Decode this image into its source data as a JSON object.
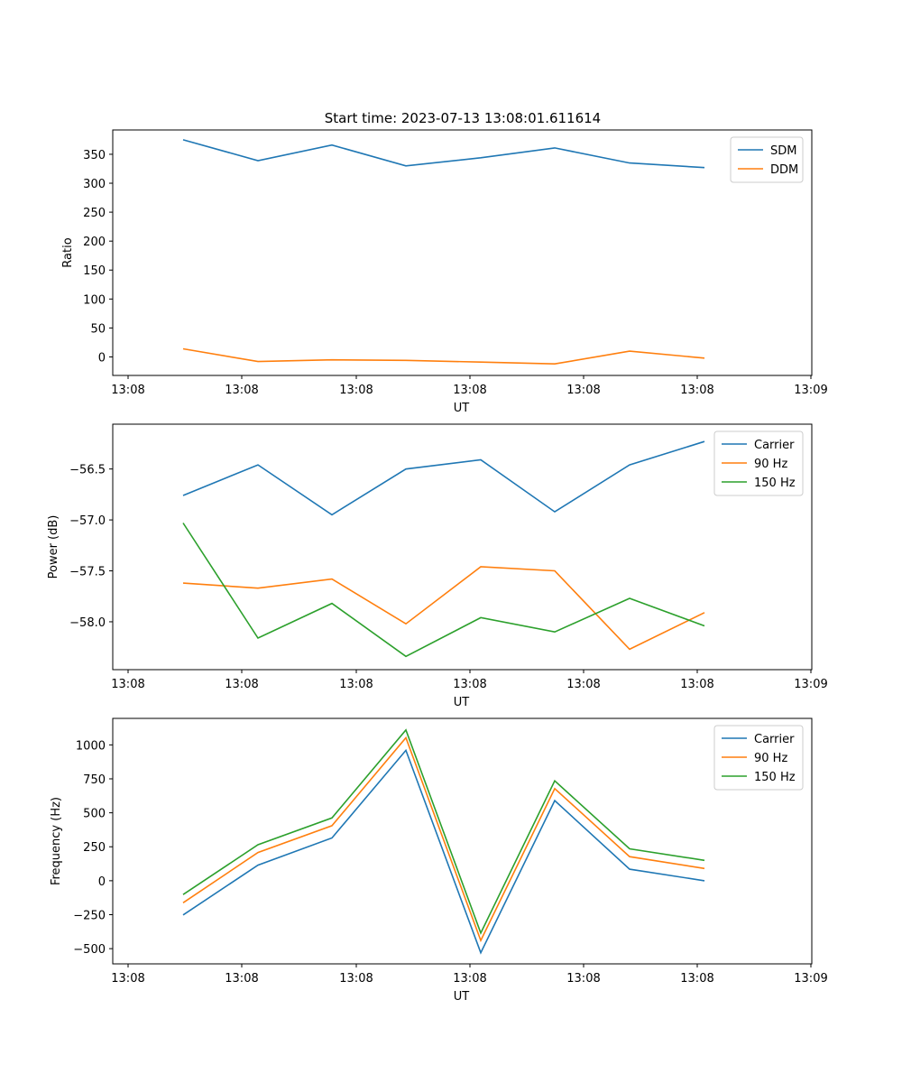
{
  "figure": {
    "title": "Start time: 2023-07-13 13:08:01.611614"
  },
  "chart_data": [
    {
      "type": "line",
      "title": "Start time: 2023-07-13 13:08:01.611614",
      "xlabel": "UT",
      "ylabel": "Ratio",
      "x_tick_labels": [
        "13:08",
        "13:08",
        "13:08",
        "13:08",
        "13:08",
        "13:08",
        "13:08"
      ],
      "ylim": [
        -32,
        392
      ],
      "y_ticks": [
        0,
        50,
        100,
        150,
        200,
        250,
        300,
        350
      ],
      "legend_position": "top-right",
      "series": [
        {
          "name": "SDM",
          "color": "#1f77b4",
          "values": [
            375,
            339,
            366,
            330,
            344,
            361,
            335,
            327
          ]
        },
        {
          "name": "DDM",
          "color": "#ff7f0e",
          "values": [
            14,
            -8,
            -5,
            -6,
            -9,
            -12,
            10,
            -2
          ]
        }
      ]
    },
    {
      "type": "line",
      "title": "",
      "xlabel": "UT",
      "ylabel": "Power (dB)",
      "x_tick_labels": [
        "13:08",
        "13:08",
        "13:08",
        "13:08",
        "13:08",
        "13:08",
        "13:08"
      ],
      "ylim": [
        -58.47,
        -56.06
      ],
      "y_ticks": [
        -58.0,
        -57.5,
        -57.0,
        -56.5
      ],
      "y_tick_labels": [
        "−58.0",
        "−57.5",
        "−57.0",
        "−56.5"
      ],
      "legend_position": "top-right",
      "series": [
        {
          "name": "Carrier",
          "color": "#1f77b4",
          "values": [
            -56.76,
            -56.46,
            -56.95,
            -56.5,
            -56.41,
            -56.92,
            -56.46,
            -56.23
          ]
        },
        {
          "name": "90 Hz",
          "color": "#ff7f0e",
          "values": [
            -57.62,
            -57.67,
            -57.58,
            -58.02,
            -57.46,
            -57.5,
            -58.27,
            -57.91
          ]
        },
        {
          "name": "150 Hz",
          "color": "#2ca02c",
          "values": [
            -57.03,
            -58.16,
            -57.82,
            -58.34,
            -57.96,
            -58.1,
            -57.77,
            -58.04
          ]
        }
      ]
    },
    {
      "type": "line",
      "title": "",
      "xlabel": "UT",
      "ylabel": "Frequency (Hz)",
      "x_tick_labels": [
        "13:08",
        "13:08",
        "13:08",
        "13:08",
        "13:08",
        "13:08",
        "13:08"
      ],
      "ylim": [
        -612,
        1195
      ],
      "y_ticks": [
        -500,
        -250,
        0,
        250,
        500,
        750,
        1000
      ],
      "y_tick_labels": [
        "−500",
        "−250",
        "0",
        "250",
        "500",
        "750",
        "1000"
      ],
      "legend_position": "top-right",
      "series": [
        {
          "name": "Carrier",
          "color": "#1f77b4",
          "values": [
            -252,
            115,
            315,
            960,
            -530,
            590,
            85,
            0
          ]
        },
        {
          "name": "90 Hz",
          "color": "#ff7f0e",
          "values": [
            -162,
            208,
            405,
            1052,
            -440,
            678,
            177,
            90
          ]
        },
        {
          "name": "150 Hz",
          "color": "#2ca02c",
          "values": [
            -102,
            265,
            462,
            1110,
            -385,
            735,
            235,
            150
          ]
        }
      ]
    }
  ]
}
